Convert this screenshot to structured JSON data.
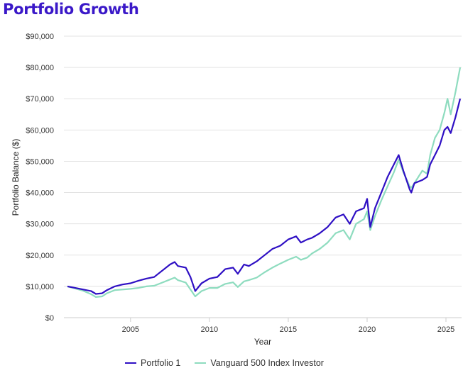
{
  "title": "Portfolio Growth",
  "chart_data": {
    "type": "line",
    "title": "Portfolio Growth",
    "xlabel": "Year",
    "ylabel": "Portfolio Balance ($)",
    "xlim": [
      2001.0,
      2025.9
    ],
    "ylim": [
      0,
      90000
    ],
    "x_ticks": [
      2005,
      2010,
      2015,
      2020,
      2025
    ],
    "y_ticks": [
      0,
      10000,
      20000,
      30000,
      40000,
      50000,
      60000,
      70000,
      80000,
      90000
    ],
    "y_tick_labels": [
      "$0",
      "$10,000",
      "$20,000",
      "$30,000",
      "$40,000",
      "$50,000",
      "$60,000",
      "$70,000",
      "$80,000",
      "$90,000"
    ],
    "grid": "horizontal",
    "legend_position": "bottom",
    "x": [
      2001.0,
      2001.5,
      2002.0,
      2002.5,
      2002.8,
      2003.2,
      2003.5,
      2004.0,
      2004.5,
      2005.0,
      2005.5,
      2006.0,
      2006.5,
      2007.0,
      2007.5,
      2007.8,
      2008.0,
      2008.5,
      2008.8,
      2009.1,
      2009.5,
      2010.0,
      2010.5,
      2011.0,
      2011.5,
      2011.8,
      2012.2,
      2012.5,
      2013.0,
      2013.5,
      2014.0,
      2014.5,
      2015.0,
      2015.5,
      2015.8,
      2016.2,
      2016.5,
      2017.0,
      2017.5,
      2018.0,
      2018.5,
      2018.9,
      2019.3,
      2019.8,
      2020.0,
      2020.2,
      2020.5,
      2020.9,
      2021.3,
      2021.7,
      2022.0,
      2022.3,
      2022.7,
      2022.8,
      2023.0,
      2023.5,
      2023.8,
      2024.0,
      2024.3,
      2024.6,
      2024.9,
      2025.1,
      2025.3,
      2025.6,
      2025.9
    ],
    "series": [
      {
        "name": "Portfolio 1",
        "color": "#2f10c4",
        "values": [
          10000,
          9500,
          9000,
          8500,
          7600,
          7800,
          8800,
          10000,
          10600,
          11000,
          11800,
          12500,
          13000,
          15000,
          17000,
          17800,
          16500,
          16000,
          13000,
          8500,
          11000,
          12500,
          13000,
          15500,
          16000,
          14000,
          17000,
          16500,
          18000,
          20000,
          22000,
          23000,
          25000,
          26000,
          24000,
          25000,
          25500,
          27000,
          29000,
          32000,
          33000,
          30000,
          34000,
          35000,
          38000,
          29000,
          35000,
          40000,
          45000,
          49000,
          52000,
          47000,
          41000,
          40000,
          43000,
          44000,
          45000,
          49000,
          52000,
          55000,
          60000,
          61000,
          59000,
          64000,
          70000
        ]
      },
      {
        "name": "Vanguard 500 Index Investor",
        "color": "#8edcbf",
        "values": [
          10000,
          9300,
          8600,
          7500,
          6600,
          6800,
          7800,
          8800,
          9000,
          9200,
          9500,
          10000,
          10200,
          11200,
          12200,
          12800,
          12000,
          11200,
          9000,
          6800,
          8500,
          9500,
          9500,
          10800,
          11300,
          9800,
          11600,
          12000,
          12800,
          14500,
          16000,
          17300,
          18500,
          19500,
          18500,
          19200,
          20500,
          22000,
          24000,
          27000,
          28000,
          25000,
          30000,
          31500,
          34000,
          28000,
          32500,
          37500,
          42000,
          46500,
          50500,
          46500,
          42000,
          41500,
          43000,
          47000,
          46000,
          52000,
          57500,
          60000,
          65500,
          70000,
          65000,
          72000,
          80000
        ]
      }
    ]
  }
}
